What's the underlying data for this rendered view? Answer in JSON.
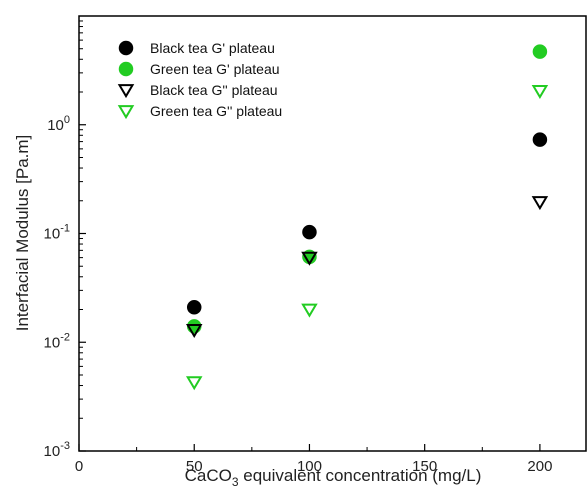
{
  "chart_data": {
    "type": "scatter",
    "x_axis": {
      "label_main": "CaCO",
      "label_sub": "3",
      "label_rest": " equivalent concentration (mg/L)",
      "range": [
        0,
        220
      ],
      "ticks": [
        0,
        50,
        100,
        150,
        200
      ],
      "tick_labels": [
        "0",
        "50",
        "100",
        "150",
        "200"
      ]
    },
    "y_axis": {
      "label": "Interfacial Modulus [Pa.m]",
      "scale": "log",
      "range": [
        0.001,
        10
      ],
      "ticks": [
        0.001,
        0.01,
        0.1,
        1
      ],
      "tick_labels": [
        {
          "base": "10",
          "exp": "-3"
        },
        {
          "base": "10",
          "exp": "-2"
        },
        {
          "base": "10",
          "exp": "-1"
        },
        {
          "base": "10",
          "exp": "0"
        }
      ]
    },
    "grid": false,
    "legend_position": "top-left",
    "series": [
      {
        "name": "Black tea G' plateau",
        "marker": "circle",
        "filled": true,
        "color": "#000000",
        "x": [
          50,
          100,
          200
        ],
        "y": [
          0.021,
          0.103,
          0.73
        ]
      },
      {
        "name": "Green tea G' plateau",
        "marker": "circle",
        "filled": true,
        "color": "#22cc22",
        "x": [
          50,
          100,
          200
        ],
        "y": [
          0.014,
          0.061,
          4.7
        ]
      },
      {
        "name": "Black tea G'' plateau",
        "marker": "triangle-down",
        "filled": false,
        "color": "#000000",
        "x": [
          50,
          100,
          200
        ],
        "y": [
          0.013,
          0.06,
          0.195
        ]
      },
      {
        "name": "Green tea G'' plateau",
        "marker": "triangle-down",
        "filled": false,
        "color": "#22cc22",
        "x": [
          50,
          100,
          200
        ],
        "y": [
          0.0043,
          0.02,
          2.05
        ]
      }
    ]
  }
}
